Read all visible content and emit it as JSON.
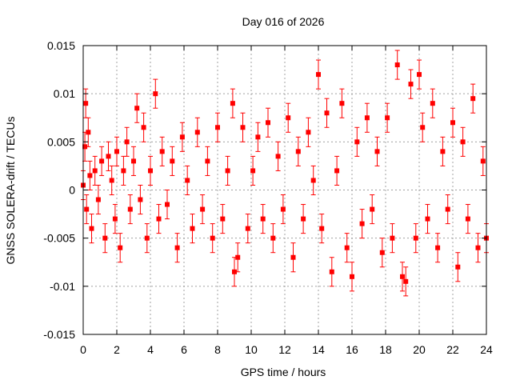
{
  "chart_data": {
    "type": "scatter",
    "title": "Day 016 of 2026",
    "xlabel": "GPS time / hours",
    "ylabel": "GNSS SOLERA-drift / TECUs",
    "xlim": [
      0,
      24
    ],
    "ylim": [
      -0.015,
      0.015
    ],
    "xticks": [
      0,
      2,
      4,
      6,
      8,
      10,
      12,
      14,
      16,
      18,
      20,
      22,
      24
    ],
    "xtick_labels": [
      "0",
      "2",
      "4",
      "6",
      "8",
      "10",
      "12",
      "14",
      "16",
      "18",
      "20",
      "22",
      "24"
    ],
    "yticks": [
      -0.015,
      -0.01,
      -0.005,
      0,
      0.005,
      0.01,
      0.015
    ],
    "ytick_labels": [
      "-0.015",
      "-0.01",
      "-0.005",
      "0",
      "0.005",
      "0.01",
      "0.015"
    ],
    "grid": true,
    "series": [
      {
        "color": "#ff0000",
        "marker": "square",
        "error_bars": true,
        "typical_error": 0.0015,
        "x": [
          0.0,
          0.1,
          0.15,
          0.2,
          0.3,
          0.4,
          0.5,
          0.7,
          0.9,
          1.1,
          1.3,
          1.5,
          1.7,
          1.9,
          2.0,
          2.2,
          2.4,
          2.6,
          2.8,
          3.0,
          3.2,
          3.4,
          3.6,
          3.8,
          4.0,
          4.3,
          4.5,
          4.7,
          5.0,
          5.3,
          5.6,
          5.9,
          6.2,
          6.5,
          6.8,
          7.1,
          7.4,
          7.7,
          8.0,
          8.3,
          8.6,
          8.9,
          9.0,
          9.2,
          9.5,
          9.8,
          10.1,
          10.4,
          10.7,
          11.0,
          11.3,
          11.6,
          11.9,
          12.2,
          12.5,
          12.8,
          13.1,
          13.4,
          13.7,
          14.0,
          14.2,
          14.5,
          14.8,
          15.1,
          15.4,
          15.7,
          16.0,
          16.3,
          16.6,
          16.9,
          17.2,
          17.5,
          17.8,
          18.1,
          18.4,
          18.7,
          19.0,
          19.2,
          19.5,
          19.8,
          20.0,
          20.2,
          20.5,
          20.8,
          21.1,
          21.4,
          21.7,
          22.0,
          22.3,
          22.6,
          22.9,
          23.2,
          23.5,
          23.8,
          24.0
        ],
        "y": [
          0.0005,
          0.0045,
          0.009,
          -0.002,
          0.006,
          0.0015,
          -0.004,
          0.002,
          -0.001,
          0.003,
          -0.005,
          0.0035,
          0.001,
          -0.003,
          0.004,
          -0.006,
          0.002,
          0.005,
          -0.002,
          0.003,
          0.0085,
          -0.001,
          0.0065,
          -0.005,
          0.002,
          0.01,
          -0.003,
          0.004,
          -0.0015,
          0.003,
          -0.006,
          0.0055,
          0.001,
          -0.004,
          0.006,
          -0.002,
          0.003,
          -0.005,
          0.0065,
          -0.003,
          0.002,
          0.009,
          -0.0085,
          -0.007,
          0.0065,
          -0.004,
          0.002,
          0.0055,
          -0.003,
          0.007,
          -0.005,
          0.0035,
          -0.002,
          0.0075,
          -0.007,
          0.004,
          -0.003,
          0.006,
          0.001,
          0.012,
          -0.004,
          0.008,
          -0.0085,
          0.002,
          0.009,
          -0.006,
          -0.009,
          0.005,
          -0.0035,
          0.0075,
          -0.002,
          0.004,
          -0.0065,
          0.0075,
          -0.005,
          0.013,
          -0.009,
          -0.0095,
          0.011,
          -0.005,
          0.012,
          0.0065,
          -0.003,
          0.009,
          -0.006,
          0.004,
          -0.002,
          0.007,
          -0.008,
          0.005,
          -0.003,
          0.0095,
          -0.006,
          0.003,
          -0.005
        ]
      }
    ]
  }
}
